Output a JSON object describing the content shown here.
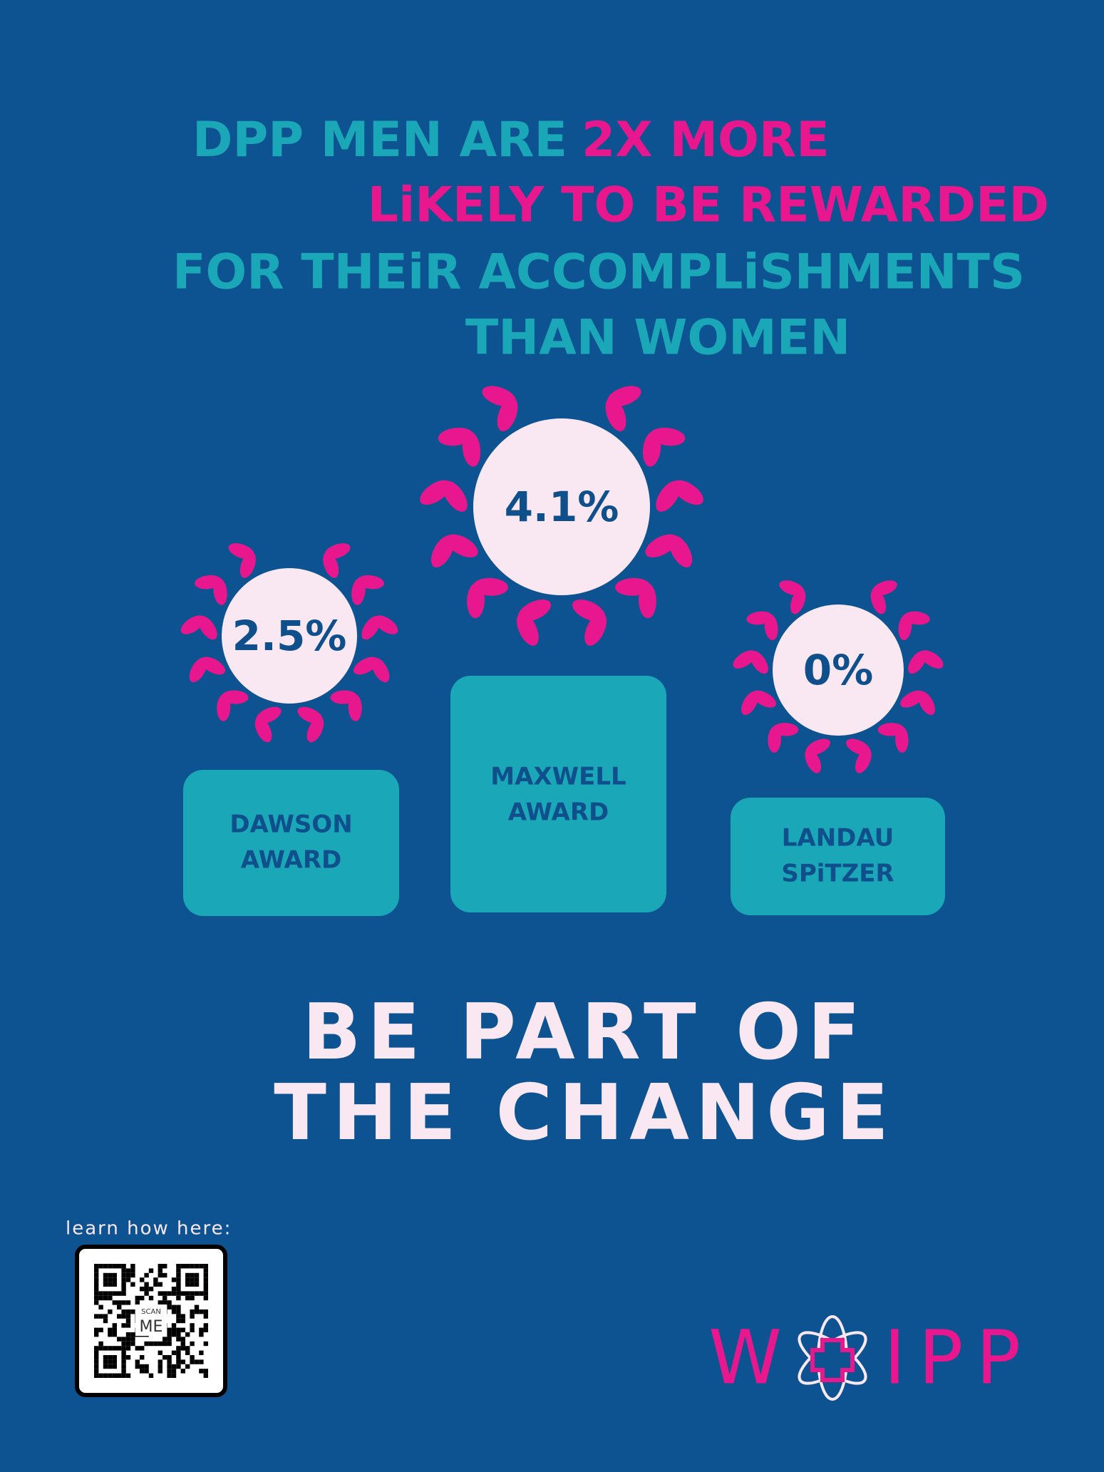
{
  "headline": {
    "line1": {
      "text": "DPP MEN ARE",
      "highlight": "2X MORE"
    },
    "line2": "LiKELY TO BE REWARDED",
    "line3": "FOR THEiR ACCOMPLiSHMENTS",
    "line4": "THAN WOMEN"
  },
  "awards": [
    {
      "percent": "2.5%",
      "name": [
        "DAWSON",
        "AWARD"
      ]
    },
    {
      "percent": "4.1%",
      "name": [
        "MAXWELL",
        "AWARD"
      ]
    },
    {
      "percent": "0%",
      "name": [
        "LANDAU",
        "SPiTZER"
      ]
    }
  ],
  "call_to_action": [
    "BE PART OF",
    "THE CHANGE"
  ],
  "qr": {
    "caption": "learn how here:",
    "label": [
      "SCAN",
      "ME"
    ]
  },
  "logo": {
    "left": "W",
    "right": "IPP"
  }
}
